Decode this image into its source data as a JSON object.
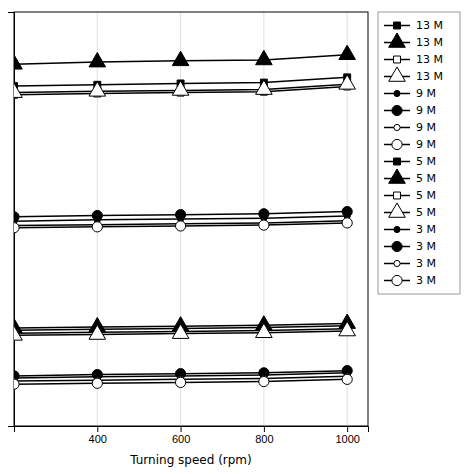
{
  "chart_data": {
    "type": "line",
    "x_label": "Turning speed (rpm)",
    "x": [
      200,
      400,
      600,
      800,
      1000
    ],
    "xlim": [
      200,
      1050
    ],
    "xticks": [
      400,
      600,
      800,
      1000
    ],
    "ylim": [
      0.1,
      1.05
    ],
    "yticks": [],
    "tick_labels": "x",
    "grid": true,
    "legend": "right",
    "color": "#000000",
    "series": [
      {
        "name": "13 M",
        "marker": "filled-square-small",
        "values": [
          0.88,
          0.883,
          0.886,
          0.888,
          0.9
        ]
      },
      {
        "name": "13 M",
        "marker": "filled-triangle-large",
        "values": [
          0.93,
          0.935,
          0.938,
          0.94,
          0.952
        ]
      },
      {
        "name": "13 M",
        "marker": "open-square-small",
        "values": [
          0.86,
          0.863,
          0.865,
          0.867,
          0.879
        ]
      },
      {
        "name": "13 M",
        "marker": "open-triangle-large",
        "values": [
          0.865,
          0.868,
          0.87,
          0.872,
          0.884
        ]
      },
      {
        "name": "9 M",
        "marker": "filled-circle-small",
        "values": [
          0.57,
          0.573,
          0.575,
          0.577,
          0.582
        ]
      },
      {
        "name": "9 M",
        "marker": "filled-circle-large",
        "values": [
          0.58,
          0.583,
          0.585,
          0.587,
          0.592
        ]
      },
      {
        "name": "9 M",
        "marker": "open-circle-small",
        "values": [
          0.56,
          0.562,
          0.564,
          0.566,
          0.571
        ]
      },
      {
        "name": "9 M",
        "marker": "open-circle-large",
        "values": [
          0.555,
          0.557,
          0.559,
          0.561,
          0.566
        ]
      },
      {
        "name": "5 M",
        "marker": "filled-square-small",
        "values": [
          0.32,
          0.322,
          0.324,
          0.326,
          0.33
        ]
      },
      {
        "name": "5 M",
        "marker": "filled-triangle-large",
        "values": [
          0.325,
          0.327,
          0.329,
          0.331,
          0.335
        ]
      },
      {
        "name": "5 M",
        "marker": "open-square-small",
        "values": [
          0.313,
          0.315,
          0.317,
          0.319,
          0.323
        ]
      },
      {
        "name": "5 M",
        "marker": "open-triangle-large",
        "values": [
          0.308,
          0.31,
          0.312,
          0.314,
          0.318
        ]
      },
      {
        "name": "3 M",
        "marker": "filled-circle-small",
        "values": [
          0.21,
          0.213,
          0.215,
          0.217,
          0.222
        ]
      },
      {
        "name": "3 M",
        "marker": "filled-circle-large",
        "values": [
          0.215,
          0.218,
          0.22,
          0.222,
          0.227
        ]
      },
      {
        "name": "3 M",
        "marker": "open-circle-small",
        "values": [
          0.203,
          0.205,
          0.207,
          0.209,
          0.214
        ]
      },
      {
        "name": "3 M",
        "marker": "open-circle-large",
        "values": [
          0.196,
          0.198,
          0.2,
          0.202,
          0.207
        ]
      }
    ]
  }
}
